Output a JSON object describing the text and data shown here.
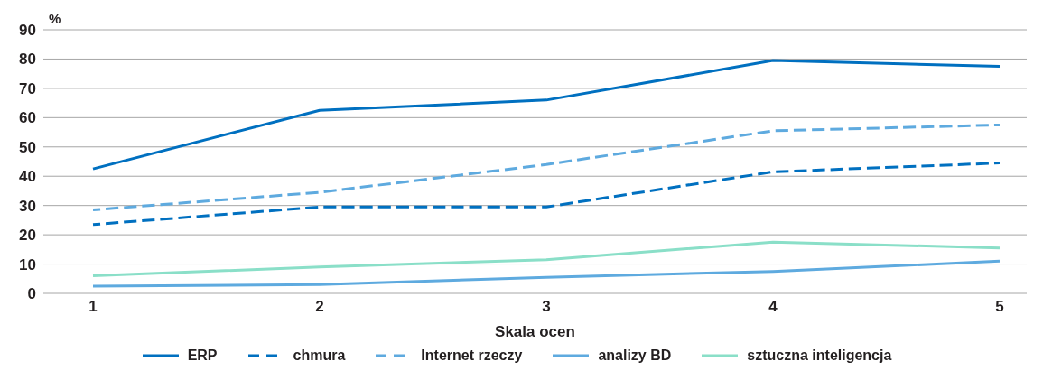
{
  "chart_data": {
    "type": "line",
    "ylabel": "%",
    "xlabel": "Skala ocen",
    "categories": [
      "1",
      "2",
      "3",
      "4",
      "5"
    ],
    "series": [
      {
        "name": "ERP",
        "color": "#0070c0",
        "line_style": "solid",
        "values": [
          42.5,
          62.5,
          66,
          79.5,
          77.5
        ]
      },
      {
        "name": "chmura",
        "color": "#0070c0",
        "line_style": "dashed",
        "values": [
          23.5,
          29.5,
          29.5,
          41.5,
          44.5
        ]
      },
      {
        "name": "Internet rzeczy",
        "color": "#5eaadf",
        "line_style": "dashed",
        "values": [
          28.5,
          34.5,
          44,
          55.5,
          57.5
        ]
      },
      {
        "name": "analizy BD",
        "color": "#5eaadf",
        "line_style": "solid",
        "values": [
          2.5,
          3,
          5.5,
          7.5,
          11
        ]
      },
      {
        "name": "sztuczna inteligencja",
        "color": "#8adfc8",
        "line_style": "solid",
        "values": [
          6,
          9,
          11.5,
          17.5,
          15.5
        ]
      }
    ],
    "ylim": [
      0,
      90
    ],
    "yticks": [
      0,
      10,
      20,
      30,
      40,
      50,
      60,
      70,
      80,
      90
    ],
    "grid": "y",
    "legend": "bottom",
    "marker": "none"
  }
}
